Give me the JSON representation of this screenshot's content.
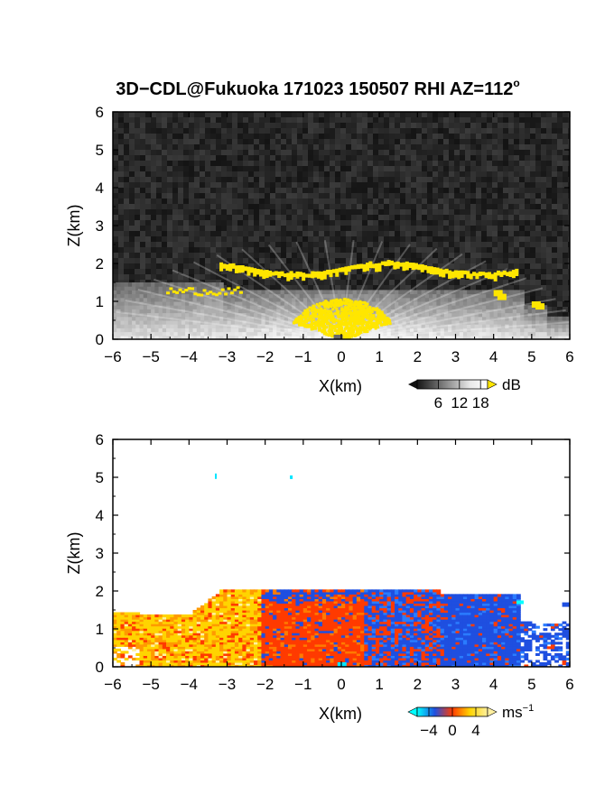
{
  "title": {
    "text": "3D−CDL@Fukuoka 171023 150507 RHI AZ=112",
    "superscript": "o"
  },
  "chart_data": [
    {
      "type": "heatmap",
      "quantity": "reflectivity",
      "xlabel": "X(km)",
      "ylabel": "Z(km)",
      "xlim": [
        -6,
        6
      ],
      "ylim": [
        0,
        6
      ],
      "xticks": [
        -6,
        -5,
        -4,
        -3,
        -2,
        -1,
        0,
        1,
        2,
        3,
        4,
        5,
        6
      ],
      "yticks": [
        0,
        1,
        2,
        3,
        4,
        5,
        6
      ],
      "colorbar": {
        "unit": "dB",
        "ticks": [
          6,
          12,
          18
        ],
        "range": [
          0,
          20
        ]
      },
      "colors": {
        "background_noise": "#202020",
        "strong_echo": "#ffe600"
      },
      "features": [
        {
          "type": "echo_top_band",
          "xrange": [
            -3.2,
            4.7
          ],
          "ztop": 2.1,
          "zbottom": 1.2
        },
        {
          "type": "strong_core",
          "xrange": [
            -1.2,
            1.0
          ],
          "ztop": 1.1,
          "zbottom": 0.0
        }
      ]
    },
    {
      "type": "heatmap",
      "quantity": "doppler_velocity",
      "xlabel": "X(km)",
      "ylabel": "Z(km)",
      "xlim": [
        -6,
        6
      ],
      "ylim": [
        0,
        6
      ],
      "xticks": [
        -6,
        -5,
        -4,
        -3,
        -2,
        -1,
        0,
        1,
        2,
        3,
        4,
        5,
        6
      ],
      "yticks": [
        0,
        1,
        2,
        3,
        4,
        5,
        6
      ],
      "colorbar": {
        "unit": "ms",
        "unit_exponent": "−1",
        "ticks": [
          "−4",
          "0",
          "4"
        ],
        "range": [
          -6,
          6
        ]
      },
      "colors": {
        "negative": "#1f4fe0",
        "zero": "#ff3a00",
        "positive": "#ffd400",
        "no_data": "#ffffff"
      },
      "features": [
        {
          "type": "positive_region",
          "xrange": [
            -6,
            -1.0
          ],
          "ztop": 1.5
        },
        {
          "type": "near_zero_region",
          "xrange": [
            -2.5,
            2.3
          ],
          "ztop": 2.0
        },
        {
          "type": "negative_region",
          "xrange": [
            0.3,
            6
          ],
          "ztop": 2.0
        }
      ]
    }
  ]
}
